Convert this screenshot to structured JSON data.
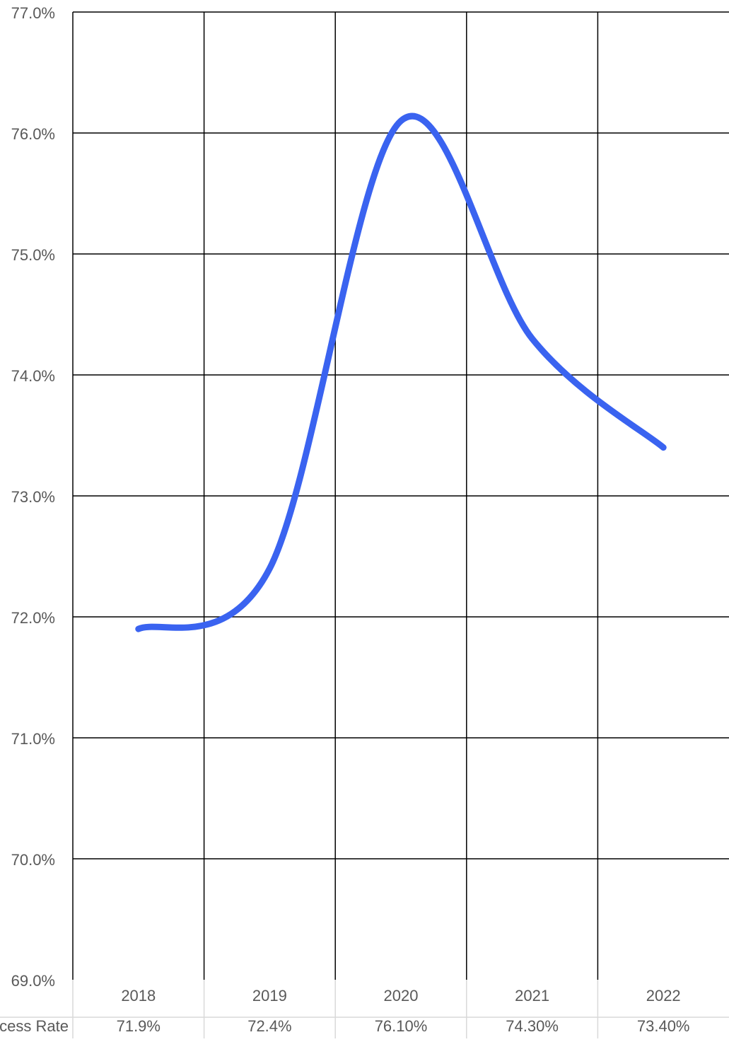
{
  "chart_data": {
    "type": "line",
    "title": "",
    "xlabel": "",
    "ylabel": "",
    "categories": [
      "2018",
      "2019",
      "2020",
      "2021",
      "2022"
    ],
    "series": [
      {
        "name": "Success Rate",
        "values": [
          71.9,
          72.4,
          76.1,
          74.3,
          73.4
        ],
        "table_labels": [
          "71.9%",
          "72.4%",
          "76.10%",
          "74.30%",
          "73.40%"
        ],
        "color": "#3a63f0",
        "smooth": true
      }
    ],
    "ylim": [
      69.0,
      77.0
    ],
    "y_ticks": [
      69,
      70,
      71,
      72,
      73,
      74,
      75,
      76,
      77
    ],
    "y_tick_labels": [
      "69.0%",
      "70.0%",
      "71.0%",
      "72.0%",
      "73.0%",
      "74.0%",
      "75.0%",
      "76.0%",
      "77.0%"
    ],
    "grid": true,
    "data_table": true,
    "legend": "none"
  },
  "colors": {
    "line": "#3a63f0",
    "grid": "#000000",
    "table_border": "#d9d9d9",
    "text": "#595959"
  }
}
